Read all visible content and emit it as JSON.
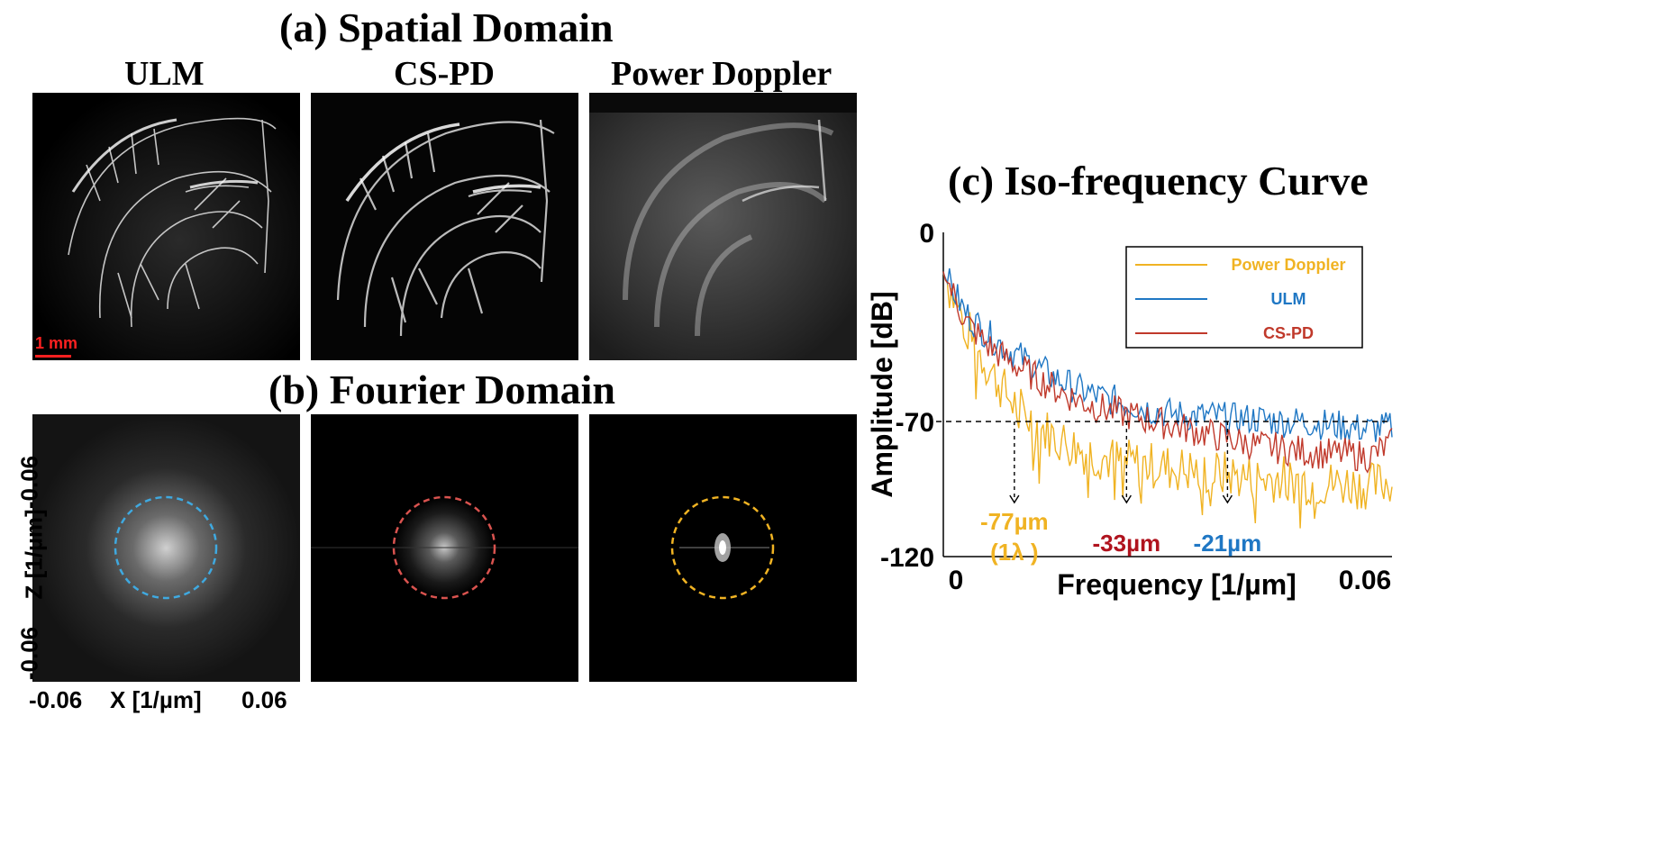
{
  "figure": {
    "section_a_title": "(a) Spatial Domain",
    "section_b_title": "(b) Fourier Domain",
    "section_c_title": "(c) Iso-frequency Curve",
    "panel_titles": [
      "ULM",
      "CS-PD",
      "Power Doppler"
    ],
    "scale_bar_label": "1 mm",
    "fourier_axes": {
      "x_label": "X [1/µm]",
      "y_label": "Z [1/µm]",
      "x_min": "-0.06",
      "x_max": "0.06",
      "y_top": "-0.06",
      "y_bottom": "-0.06"
    },
    "colors": {
      "ulm": "#1f77c4",
      "cspd": "#c0392b",
      "power_doppler": "#f0b323",
      "scale_bar": "#ff2020"
    }
  },
  "chart_data": {
    "type": "line",
    "title": "(c) Iso-frequency Curve",
    "xlabel": "Frequency [1/µm]",
    "ylabel": "Amplitude [dB]",
    "xlim": [
      0,
      0.06
    ],
    "ylim": [
      -120,
      0
    ],
    "x_tick_labels": [
      "0",
      "0.06"
    ],
    "y_tick_labels": [
      "0",
      "-70",
      "-120"
    ],
    "legend_position": "top-right",
    "series": [
      {
        "name": "Power Doppler",
        "color": "#f0b323",
        "x": [
          0,
          0.003,
          0.006,
          0.009,
          0.012,
          0.015,
          0.018,
          0.021,
          0.024,
          0.027,
          0.03,
          0.033,
          0.036,
          0.039,
          0.042,
          0.045,
          0.048,
          0.051,
          0.054,
          0.057,
          0.06
        ],
        "y": [
          -15,
          -35,
          -50,
          -62,
          -70,
          -76,
          -80,
          -83,
          -85,
          -86,
          -87,
          -88,
          -89,
          -90,
          -91,
          -91,
          -92,
          -93,
          -93,
          -94,
          -92
        ]
      },
      {
        "name": "ULM",
        "color": "#1f77c4",
        "x": [
          0,
          0.003,
          0.006,
          0.009,
          0.012,
          0.015,
          0.018,
          0.021,
          0.024,
          0.027,
          0.03,
          0.033,
          0.036,
          0.039,
          0.042,
          0.045,
          0.048,
          0.051,
          0.054,
          0.057,
          0.06
        ],
        "y": [
          -15,
          -30,
          -38,
          -44,
          -49,
          -54,
          -58,
          -61,
          -63,
          -65,
          -67,
          -68,
          -68,
          -69,
          -69,
          -70,
          -70,
          -71,
          -72,
          -73,
          -72
        ]
      },
      {
        "name": "CS-PD",
        "color": "#c0392b",
        "x": [
          0,
          0.003,
          0.006,
          0.009,
          0.012,
          0.015,
          0.018,
          0.021,
          0.024,
          0.027,
          0.03,
          0.033,
          0.036,
          0.039,
          0.042,
          0.045,
          0.048,
          0.051,
          0.054,
          0.057,
          0.06
        ],
        "y": [
          -15,
          -33,
          -42,
          -48,
          -53,
          -58,
          -62,
          -65,
          -67,
          -69,
          -71,
          -73,
          -75,
          -77,
          -79,
          -80,
          -81,
          -82,
          -82,
          -83,
          -78
        ]
      }
    ],
    "threshold": {
      "y": -70,
      "label": "-70"
    },
    "annotations": [
      {
        "line1": "-77µm",
        "line2": "(1λ )",
        "x": 0.0095,
        "color": "#f0b323"
      },
      {
        "line1": "-33µm",
        "x": 0.0245,
        "color": "#b0131e"
      },
      {
        "line1": "-21µm",
        "x": 0.038,
        "color": "#1f77c4"
      }
    ]
  }
}
